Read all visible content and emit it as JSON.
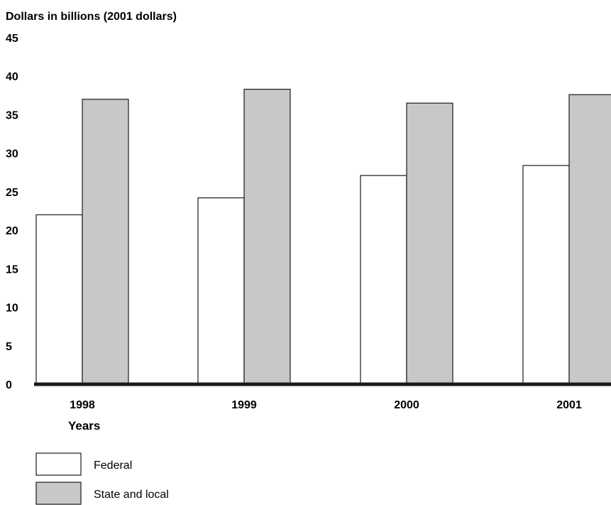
{
  "chart_data": {
    "type": "bar",
    "title": "",
    "ylabel": "Dollars in billions (2001 dollars)",
    "xlabel": "Years",
    "categories": [
      "1998",
      "1999",
      "2000",
      "2001"
    ],
    "ylim": [
      0,
      45
    ],
    "yticks": [
      0,
      5,
      10,
      15,
      20,
      25,
      30,
      35,
      40,
      45
    ],
    "grid": false,
    "legend_position": "bottom-left",
    "series": [
      {
        "name": "Federal",
        "values": [
          22.0,
          24.2,
          27.1,
          28.4
        ],
        "color": "#ffffff"
      },
      {
        "name": "State and local",
        "values": [
          37.0,
          38.3,
          36.5,
          37.6
        ],
        "color": "#c8c8c8"
      }
    ]
  }
}
